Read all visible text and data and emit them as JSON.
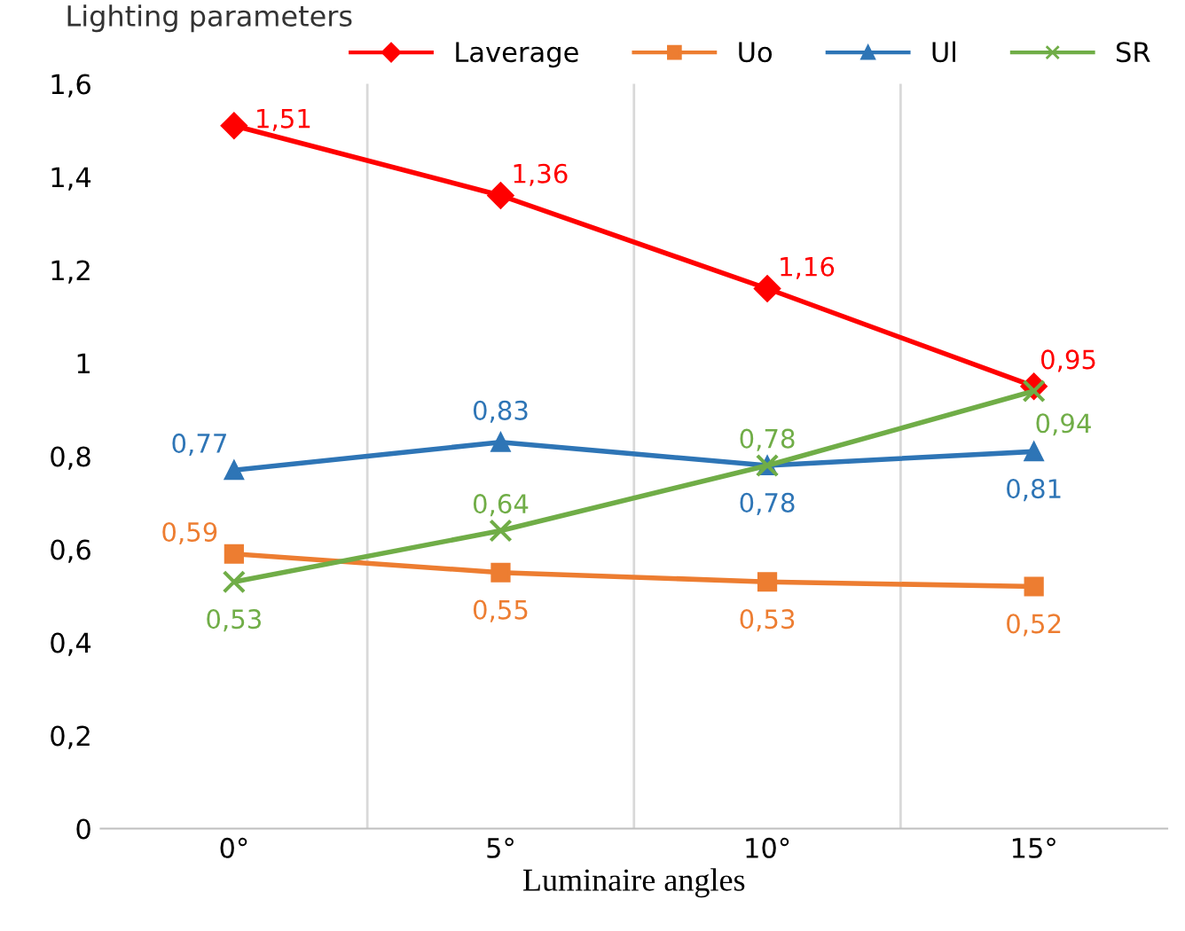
{
  "chart_data": {
    "type": "line",
    "ylabel": "Lighting parameters",
    "xlabel": "Luminaire angles",
    "categories": [
      "0°",
      "5°",
      "10°",
      "15°"
    ],
    "series": [
      {
        "name": "Laverage",
        "color": "#ff0000",
        "marker": "diamond",
        "values": [
          1.51,
          1.36,
          1.16,
          0.95
        ],
        "value_labels": [
          "1,51",
          "1,36",
          "1,16",
          "0,95"
        ]
      },
      {
        "name": "Uo",
        "color": "#ed7d31",
        "marker": "square",
        "values": [
          0.59,
          0.55,
          0.53,
          0.52
        ],
        "value_labels": [
          "0,59",
          "0,55",
          "0,53",
          "0,52"
        ]
      },
      {
        "name": "Ul",
        "color": "#2e75b6",
        "marker": "triangle",
        "values": [
          0.77,
          0.83,
          0.78,
          0.81
        ],
        "value_labels": [
          "0,77",
          "0,83",
          "0,78",
          "0,81"
        ]
      },
      {
        "name": "SR",
        "color": "#70ad47",
        "marker": "cross",
        "values": [
          0.53,
          0.64,
          0.78,
          0.94
        ],
        "value_labels": [
          "0,53",
          "0,64",
          "0,78",
          "0,94"
        ]
      }
    ],
    "ylim": [
      0,
      1.6
    ],
    "yticks": [
      0,
      {
        "value": 0.2,
        "label": "0,2"
      },
      {
        "value": 0.4,
        "label": "0,4"
      },
      {
        "value": 0.6,
        "label": "0,6"
      },
      {
        "value": 0.8,
        "label": "0,8"
      },
      1,
      {
        "value": 1.2,
        "label": "1,2"
      },
      {
        "value": 1.4,
        "label": "1,4"
      },
      {
        "value": 1.6,
        "label": "1,6"
      }
    ],
    "grid": "x",
    "legend": "top right",
    "line_style": "solid"
  }
}
